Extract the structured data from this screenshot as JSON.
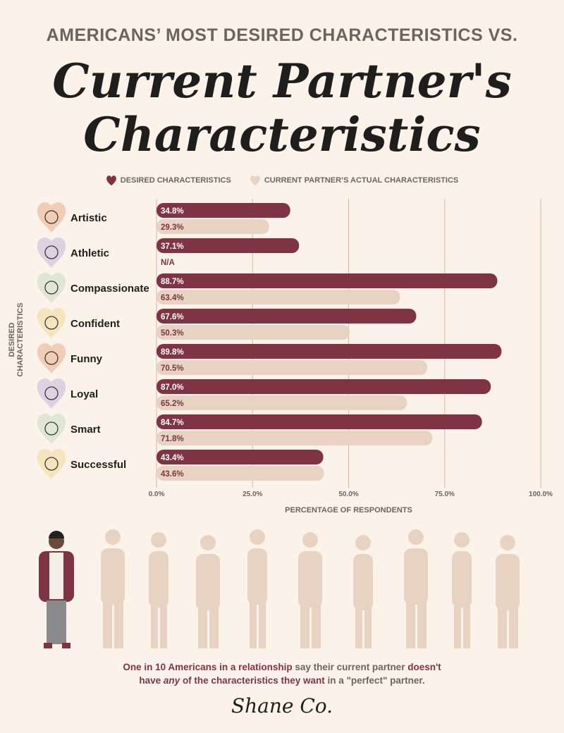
{
  "header": {
    "supertitle": "AMERICANS’ MOST DESIRED CHARACTERISTICS VS.",
    "title_line1": "Current Partner's",
    "title_line2": "Characteristics"
  },
  "colors": {
    "desired": "#7e3443",
    "actual": "#e8d3c3",
    "grid": "#d8b9a5"
  },
  "chart_data": {
    "type": "bar",
    "orientation": "horizontal",
    "categories": [
      "Artistic",
      "Athletic",
      "Compassionate",
      "Confident",
      "Funny",
      "Loyal",
      "Smart",
      "Successful"
    ],
    "category_icons": [
      "palette-icon",
      "basketball-icon",
      "heart-hands-icon",
      "flag-person-icon",
      "theater-masks-icon",
      "heart-tree-icon",
      "lightbulb-icon",
      "money-icon"
    ],
    "category_colors": [
      "#f2cdb5",
      "#ddd1e2",
      "#dfe7d4",
      "#f6e4bd",
      "#f2cdb5",
      "#ddd1e2",
      "#dfe7d4",
      "#f6e4bd"
    ],
    "series": [
      {
        "name": "DESIRED CHARACTERISTICS",
        "values": [
          34.8,
          37.1,
          88.7,
          67.6,
          89.8,
          87.0,
          84.7,
          43.4
        ],
        "labels": [
          "34.8%",
          "37.1%",
          "88.7%",
          "67.6%",
          "89.8%",
          "87.0%",
          "84.7%",
          "43.4%"
        ]
      },
      {
        "name": "CURRENT PARTNER’S ACTUAL CHARACTERISTICS",
        "values": [
          29.3,
          null,
          63.4,
          50.3,
          70.5,
          65.2,
          71.8,
          43.6
        ],
        "labels": [
          "29.3%",
          "N/A",
          "63.4%",
          "50.3%",
          "70.5%",
          "65.2%",
          "71.8%",
          "43.6%"
        ]
      }
    ],
    "xlabel": "PERCENTAGE OF RESPONDENTS",
    "ylabel": "DESIRED CHARACTERISTICS",
    "xlim": [
      0,
      100
    ],
    "xticks": [
      "0.0%",
      "25.0%",
      "50.0%",
      "75.0%",
      "100.0%"
    ],
    "xtick_values": [
      0,
      25,
      50,
      75,
      100
    ],
    "grid": true,
    "legend": "top-center"
  },
  "footer": {
    "p1": "One in 10 Americans in a relationship",
    "p2": " say their current partner ",
    "p3": "doesn't",
    "p4": "have ",
    "p5": "any",
    "p6": " of the characteristics they want",
    "p7": " in a \"perfect\" partner.",
    "brand": "Shane Co."
  }
}
